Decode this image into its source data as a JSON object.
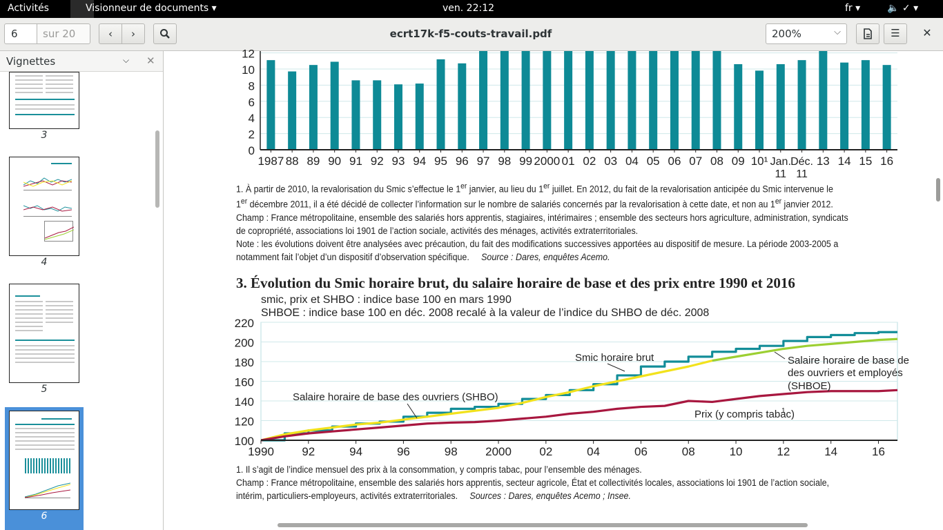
{
  "topbar": {
    "activities": "Activités",
    "app_menu": "Visionneur de documents ▾",
    "clock": "ven. 22:12",
    "lang": "fr ▾",
    "system": "🔈 ✓ ▾"
  },
  "header": {
    "page_current": "6",
    "page_total": "sur 20",
    "title": "ecrt17k-f5-couts-travail.pdf",
    "zoom": "200%"
  },
  "sidebar": {
    "title": "Vignettes",
    "thumbnails": [
      {
        "label": "3"
      },
      {
        "label": "4"
      },
      {
        "label": "5"
      },
      {
        "label": "6",
        "selected": true
      }
    ]
  },
  "document": {
    "note1": {
      "line1a": "1. À partir de 2010, la revalorisation du Smic s’effectue le 1",
      "line1b": "er",
      "line1c": " janvier, au lieu du 1",
      "line1d": "er",
      "line1e": " juillet. En 2012, du fait de la revalorisation anticipée du Smic intervenue le",
      "line2a": "1",
      "line2b": "er",
      "line2c": " décembre 2011, il a été décidé de collecter l’information sur le nombre de salariés concernés par la revalorisation à cette date, et non au 1",
      "line2d": "er",
      "line2e": " janvier 2012.",
      "champ": "Champ : France métropolitaine, ensemble des salariés hors apprentis, stagiaires, intérimaires ; ensemble des secteurs hors agriculture, administration, syndicats de copropriété, associations loi 1901 de l’action sociale, activités des ménages, activités extraterritoriales.",
      "note": "Note : les évolutions doivent être analysées avec précaution, du fait des modifications successives apportées au dispositif de mesure. La période 2003-2005 a notamment fait l’objet d’un dispositif d’observation spécifique.",
      "source": "Source : Dares, enquêtes Acemo."
    },
    "section_title": "3. Évolution du Smic horaire brut, du salaire horaire de base et des prix entre 1990 et 2016",
    "index_note1": "smic, prix et SHBO : indice base 100 en mars 1990",
    "index_note2": "SHBOE : indice base 100 en déc. 2008 recalé à la valeur de l’indice du SHBO de déc. 2008",
    "note2": {
      "line1": "1. Il s’agit de l’indice mensuel des prix à la consommation, y compris tabac, pour l’ensemble des ménages.",
      "champ": "Champ : France métropolitaine, ensemble des salariés hors apprentis, secteur agricole, État et collectivités locales, associations loi 1901 de l’action sociale, intérim, particuliers-employeurs, activités extraterritoriales.",
      "source": "Sources : Dares, enquêtes Acemo ; Insee."
    }
  },
  "chart_data": [
    {
      "type": "bar",
      "categories": [
        "1987",
        "88",
        "89",
        "90",
        "91",
        "92",
        "93",
        "94",
        "95",
        "96",
        "97",
        "98",
        "99",
        "2000",
        "01",
        "02",
        "03",
        "04",
        "05",
        "06",
        "07",
        "08",
        "09",
        "10¹",
        "Jan. 11",
        "Déc. 11",
        "13",
        "14",
        "15",
        "16"
      ],
      "values": [
        11.1,
        9.7,
        10.5,
        10.9,
        8.6,
        8.6,
        8.1,
        8.2,
        11.2,
        10.7,
        13.5,
        13.5,
        13.5,
        13.5,
        13.5,
        13.5,
        13.5,
        13.5,
        13.5,
        13.5,
        13.5,
        13.5,
        10.6,
        9.8,
        10.6,
        11.1,
        12.4,
        10.8,
        11.1,
        10.5
      ],
      "yticks": [
        0,
        2,
        4,
        6,
        8,
        10,
        12
      ],
      "color": "#0e8a96"
    },
    {
      "type": "line",
      "xticks": [
        "1990",
        "92",
        "94",
        "96",
        "98",
        "2000",
        "02",
        "04",
        "06",
        "08",
        "10",
        "12",
        "14",
        "16"
      ],
      "yticks": [
        100,
        120,
        140,
        160,
        180,
        200,
        220
      ],
      "ylim": [
        100,
        220
      ],
      "series": [
        {
          "name": "Smic horaire brut",
          "color": "#128d98",
          "x": [
            1990,
            1991,
            1992,
            1993,
            1994,
            1995,
            1996,
            1997,
            1998,
            1999,
            2000,
            2001,
            2002,
            2003,
            2004,
            2005,
            2006,
            2007,
            2008,
            2009,
            2010,
            2011,
            2012,
            2013,
            2014,
            2015,
            2016,
            2016.8
          ],
          "y": [
            100,
            107,
            110,
            114,
            117,
            119,
            124,
            128,
            132,
            134,
            137,
            142,
            146,
            151,
            157,
            166,
            175,
            180,
            185,
            190,
            193,
            196,
            201,
            205,
            207,
            209,
            210,
            210
          ]
        },
        {
          "name": "Salaire horaire de base des ouvriers (SHBO)",
          "color": "#f2e21c",
          "x": [
            1990,
            1991,
            1992,
            1993,
            1994,
            1995,
            1996,
            1997,
            1998,
            1999,
            2000,
            2001,
            2002,
            2003,
            2004,
            2005,
            2006,
            2007,
            2008,
            2009
          ],
          "y": [
            100,
            106,
            110,
            113,
            116,
            118,
            121,
            124,
            127,
            130,
            133,
            138,
            144,
            149,
            155,
            160,
            165,
            170,
            175,
            181
          ]
        },
        {
          "name": "Salaire horaire de base des ouvriers et employés (SHBOE)",
          "color": "#9ccf32",
          "x": [
            2009,
            2010,
            2011,
            2012,
            2013,
            2014,
            2015,
            2016,
            2016.8
          ],
          "y": [
            181,
            185,
            189,
            193,
            196,
            198,
            200,
            202,
            203
          ]
        },
        {
          "name": "Prix (y compris tabac)",
          "color": "#a8173f",
          "x": [
            1990,
            1991,
            1992,
            1993,
            1994,
            1995,
            1996,
            1997,
            1998,
            1999,
            2000,
            2001,
            2002,
            2003,
            2004,
            2005,
            2006,
            2007,
            2008,
            2009,
            2010,
            2011,
            2012,
            2013,
            2014,
            2015,
            2016,
            2016.8
          ],
          "y": [
            100,
            104,
            107,
            109,
            111,
            113,
            115,
            117,
            118,
            118.5,
            120,
            122,
            124,
            127,
            129,
            132,
            134,
            135,
            140,
            139,
            142,
            145,
            147,
            149,
            150,
            150,
            150,
            151
          ]
        }
      ],
      "labels": {
        "smic": "Smic horaire brut",
        "shbo": "Salaire horaire de base des ouvriers (SHBO)",
        "shboe1": "Salaire horaire de base de",
        "shboe2": "des ouvriers et employés",
        "shboe3": "(SHBOE)",
        "prix": "Prix (y compris tabac)",
        "prix_sup": "1"
      }
    }
  ]
}
